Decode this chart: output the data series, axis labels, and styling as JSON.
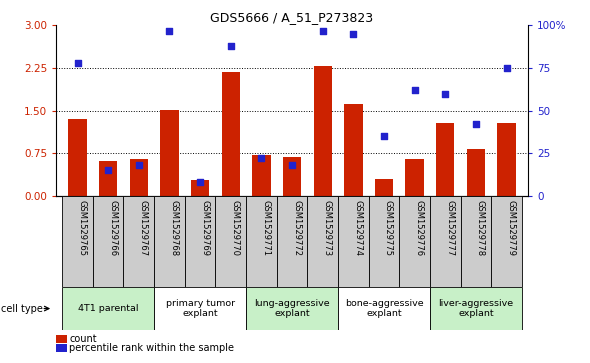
{
  "title": "GDS5666 / A_51_P273823",
  "samples": [
    "GSM1529765",
    "GSM1529766",
    "GSM1529767",
    "GSM1529768",
    "GSM1529769",
    "GSM1529770",
    "GSM1529771",
    "GSM1529772",
    "GSM1529773",
    "GSM1529774",
    "GSM1529775",
    "GSM1529776",
    "GSM1529777",
    "GSM1529778",
    "GSM1529779"
  ],
  "counts": [
    1.35,
    0.62,
    0.65,
    1.52,
    0.28,
    2.18,
    0.72,
    0.68,
    2.28,
    1.62,
    0.3,
    0.65,
    1.28,
    0.82,
    1.28
  ],
  "percentiles": [
    78,
    15,
    18,
    97,
    8,
    88,
    22,
    18,
    97,
    95,
    35,
    62,
    60,
    42,
    75
  ],
  "ylim_left": [
    0,
    3
  ],
  "ylim_right": [
    0,
    100
  ],
  "yticks_left": [
    0,
    0.75,
    1.5,
    2.25,
    3
  ],
  "yticks_right": [
    0,
    25,
    50,
    75,
    100
  ],
  "cell_type_groups": [
    {
      "label": "4T1 parental",
      "start": 0,
      "end": 2,
      "color": "#c8f0c8"
    },
    {
      "label": "primary tumor\nexplant",
      "start": 3,
      "end": 5,
      "color": "#ffffff"
    },
    {
      "label": "lung-aggressive\nexplant",
      "start": 6,
      "end": 8,
      "color": "#c8f0c8"
    },
    {
      "label": "bone-aggressive\nexplant",
      "start": 9,
      "end": 11,
      "color": "#ffffff"
    },
    {
      "label": "liver-aggressive\nexplant",
      "start": 12,
      "end": 14,
      "color": "#c8f0c8"
    }
  ],
  "bar_color": "#cc2200",
  "dot_color": "#2222cc",
  "label_box_color": "#cccccc",
  "bar_width": 0.6,
  "legend_count_label": "count",
  "legend_percentile_label": "percentile rank within the sample",
  "cell_type_label": "cell type",
  "tick_color_left": "#cc2200",
  "tick_color_right": "#2222cc"
}
